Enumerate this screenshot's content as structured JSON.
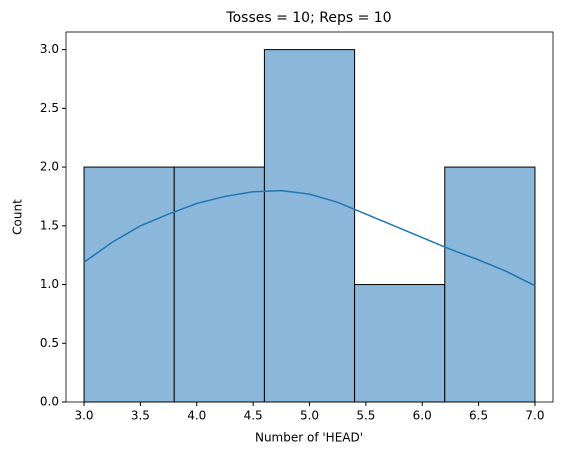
{
  "chart_data": {
    "type": "histogram",
    "title": "Tosses = 10; Reps = 10",
    "xlabel": "Number of 'HEAD'",
    "ylabel": "Count",
    "bins": [
      3.0,
      3.8,
      4.6,
      5.4,
      6.2,
      7.0
    ],
    "counts": [
      2,
      2,
      3,
      1,
      2
    ],
    "color": "#8bb8da",
    "edgecolor": "#000000",
    "kde": {
      "color": "#1f77b4",
      "x": [
        3.0,
        3.25,
        3.5,
        3.75,
        4.0,
        4.25,
        4.5,
        4.75,
        5.0,
        5.25,
        5.5,
        5.75,
        6.0,
        6.25,
        6.5,
        6.75,
        7.0
      ],
      "y": [
        1.19,
        1.36,
        1.5,
        1.6,
        1.69,
        1.75,
        1.79,
        1.8,
        1.77,
        1.7,
        1.6,
        1.5,
        1.4,
        1.3,
        1.21,
        1.11,
        0.99
      ]
    },
    "xlim": [
      2.84,
      7.16
    ],
    "ylim": [
      0,
      3.15
    ],
    "xticks": [
      {
        "value": 3,
        "label": "3.0"
      },
      3.5,
      {
        "value": 4,
        "label": "4.0"
      },
      4.5,
      {
        "value": 5,
        "label": "5.0"
      },
      5.5,
      {
        "value": 6,
        "label": "6.0"
      },
      6.5,
      {
        "value": 7,
        "label": "7.0"
      }
    ],
    "yticks": [
      {
        "value": 0,
        "label": "0.0"
      },
      0.5,
      {
        "value": 1,
        "label": "1.0"
      },
      1.5,
      {
        "value": 2,
        "label": "2.0"
      },
      2.5,
      {
        "value": 3,
        "label": "3.0"
      }
    ]
  }
}
